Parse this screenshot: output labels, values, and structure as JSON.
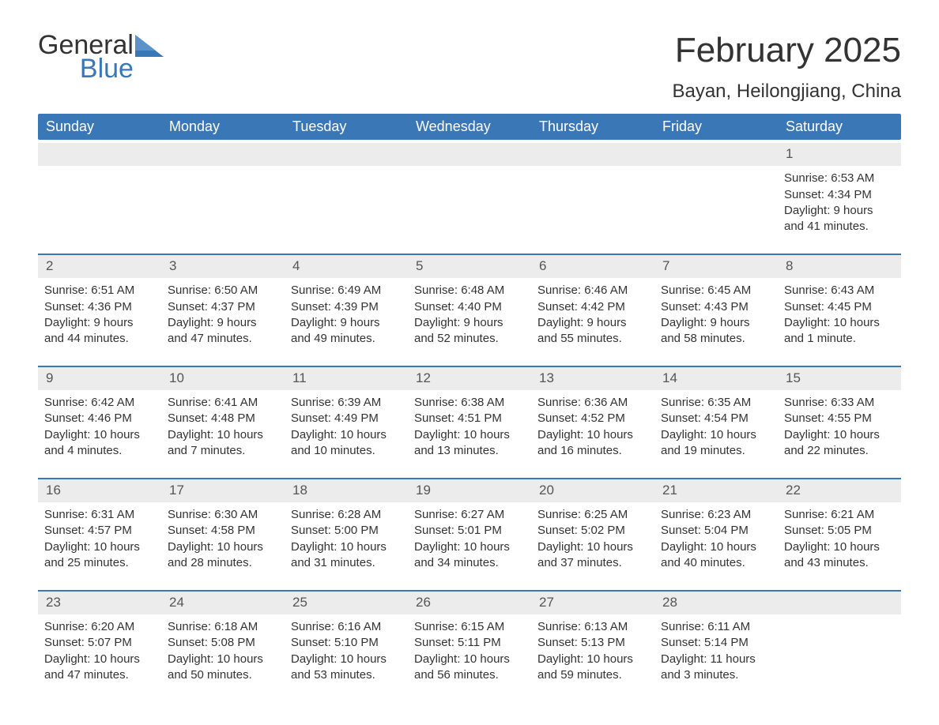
{
  "logo": {
    "word1": "General",
    "word2": "Blue"
  },
  "title": "February 2025",
  "location": "Bayan, Heilongjiang, China",
  "brand_color": "#3a77b7",
  "header_bg": "#3a77b7",
  "header_text_color": "#ffffff",
  "daynum_bg": "#ececec",
  "text_color": "#333333",
  "day_names": [
    "Sunday",
    "Monday",
    "Tuesday",
    "Wednesday",
    "Thursday",
    "Friday",
    "Saturday"
  ],
  "labels": {
    "sunrise": "Sunrise:",
    "sunset": "Sunset:",
    "daylight": "Daylight:"
  },
  "weeks": [
    [
      null,
      null,
      null,
      null,
      null,
      null,
      {
        "n": "1",
        "sunrise": "6:53 AM",
        "sunset": "4:34 PM",
        "dl1": "9 hours",
        "dl2": "and 41 minutes."
      }
    ],
    [
      {
        "n": "2",
        "sunrise": "6:51 AM",
        "sunset": "4:36 PM",
        "dl1": "9 hours",
        "dl2": "and 44 minutes."
      },
      {
        "n": "3",
        "sunrise": "6:50 AM",
        "sunset": "4:37 PM",
        "dl1": "9 hours",
        "dl2": "and 47 minutes."
      },
      {
        "n": "4",
        "sunrise": "6:49 AM",
        "sunset": "4:39 PM",
        "dl1": "9 hours",
        "dl2": "and 49 minutes."
      },
      {
        "n": "5",
        "sunrise": "6:48 AM",
        "sunset": "4:40 PM",
        "dl1": "9 hours",
        "dl2": "and 52 minutes."
      },
      {
        "n": "6",
        "sunrise": "6:46 AM",
        "sunset": "4:42 PM",
        "dl1": "9 hours",
        "dl2": "and 55 minutes."
      },
      {
        "n": "7",
        "sunrise": "6:45 AM",
        "sunset": "4:43 PM",
        "dl1": "9 hours",
        "dl2": "and 58 minutes."
      },
      {
        "n": "8",
        "sunrise": "6:43 AM",
        "sunset": "4:45 PM",
        "dl1": "10 hours",
        "dl2": "and 1 minute."
      }
    ],
    [
      {
        "n": "9",
        "sunrise": "6:42 AM",
        "sunset": "4:46 PM",
        "dl1": "10 hours",
        "dl2": "and 4 minutes."
      },
      {
        "n": "10",
        "sunrise": "6:41 AM",
        "sunset": "4:48 PM",
        "dl1": "10 hours",
        "dl2": "and 7 minutes."
      },
      {
        "n": "11",
        "sunrise": "6:39 AM",
        "sunset": "4:49 PM",
        "dl1": "10 hours",
        "dl2": "and 10 minutes."
      },
      {
        "n": "12",
        "sunrise": "6:38 AM",
        "sunset": "4:51 PM",
        "dl1": "10 hours",
        "dl2": "and 13 minutes."
      },
      {
        "n": "13",
        "sunrise": "6:36 AM",
        "sunset": "4:52 PM",
        "dl1": "10 hours",
        "dl2": "and 16 minutes."
      },
      {
        "n": "14",
        "sunrise": "6:35 AM",
        "sunset": "4:54 PM",
        "dl1": "10 hours",
        "dl2": "and 19 minutes."
      },
      {
        "n": "15",
        "sunrise": "6:33 AM",
        "sunset": "4:55 PM",
        "dl1": "10 hours",
        "dl2": "and 22 minutes."
      }
    ],
    [
      {
        "n": "16",
        "sunrise": "6:31 AM",
        "sunset": "4:57 PM",
        "dl1": "10 hours",
        "dl2": "and 25 minutes."
      },
      {
        "n": "17",
        "sunrise": "6:30 AM",
        "sunset": "4:58 PM",
        "dl1": "10 hours",
        "dl2": "and 28 minutes."
      },
      {
        "n": "18",
        "sunrise": "6:28 AM",
        "sunset": "5:00 PM",
        "dl1": "10 hours",
        "dl2": "and 31 minutes."
      },
      {
        "n": "19",
        "sunrise": "6:27 AM",
        "sunset": "5:01 PM",
        "dl1": "10 hours",
        "dl2": "and 34 minutes."
      },
      {
        "n": "20",
        "sunrise": "6:25 AM",
        "sunset": "5:02 PM",
        "dl1": "10 hours",
        "dl2": "and 37 minutes."
      },
      {
        "n": "21",
        "sunrise": "6:23 AM",
        "sunset": "5:04 PM",
        "dl1": "10 hours",
        "dl2": "and 40 minutes."
      },
      {
        "n": "22",
        "sunrise": "6:21 AM",
        "sunset": "5:05 PM",
        "dl1": "10 hours",
        "dl2": "and 43 minutes."
      }
    ],
    [
      {
        "n": "23",
        "sunrise": "6:20 AM",
        "sunset": "5:07 PM",
        "dl1": "10 hours",
        "dl2": "and 47 minutes."
      },
      {
        "n": "24",
        "sunrise": "6:18 AM",
        "sunset": "5:08 PM",
        "dl1": "10 hours",
        "dl2": "and 50 minutes."
      },
      {
        "n": "25",
        "sunrise": "6:16 AM",
        "sunset": "5:10 PM",
        "dl1": "10 hours",
        "dl2": "and 53 minutes."
      },
      {
        "n": "26",
        "sunrise": "6:15 AM",
        "sunset": "5:11 PM",
        "dl1": "10 hours",
        "dl2": "and 56 minutes."
      },
      {
        "n": "27",
        "sunrise": "6:13 AM",
        "sunset": "5:13 PM",
        "dl1": "10 hours",
        "dl2": "and 59 minutes."
      },
      {
        "n": "28",
        "sunrise": "6:11 AM",
        "sunset": "5:14 PM",
        "dl1": "11 hours",
        "dl2": "and 3 minutes."
      },
      null
    ]
  ]
}
